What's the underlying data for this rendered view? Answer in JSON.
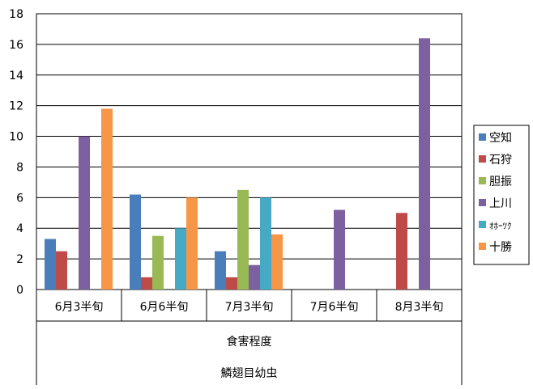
{
  "chart_data": {
    "type": "bar",
    "categories": [
      "6月3半旬",
      "6月6半旬",
      "7月3半旬",
      "7月6半旬",
      "8月3半旬"
    ],
    "category_groups": [
      "食害程度",
      "鱗翅目幼虫"
    ],
    "ylim": [
      0,
      18
    ],
    "yticks": [
      "0",
      "2",
      "4",
      "6",
      "8",
      "10",
      "12",
      "14",
      "16",
      "18"
    ],
    "grid": true,
    "legend_position": "right",
    "series": [
      {
        "name": "空知",
        "color": "#4a7ebb",
        "values": [
          3.3,
          6.2,
          2.5,
          null,
          null
        ]
      },
      {
        "name": "石狩",
        "color": "#be4b48",
        "values": [
          2.5,
          0.8,
          0.8,
          null,
          5.0
        ]
      },
      {
        "name": "胆振",
        "color": "#98b954",
        "values": [
          null,
          3.5,
          6.5,
          null,
          null
        ]
      },
      {
        "name": "上川",
        "color": "#7d60a0",
        "values": [
          10.0,
          null,
          1.6,
          5.2,
          16.4
        ]
      },
      {
        "name": "ｵﾎｰﾂｸ",
        "color": "#46aac5",
        "values": [
          null,
          4.0,
          6.0,
          null,
          null
        ]
      },
      {
        "name": "十勝",
        "color": "#f79646",
        "values": [
          11.8,
          6.0,
          3.6,
          null,
          null
        ]
      }
    ]
  }
}
